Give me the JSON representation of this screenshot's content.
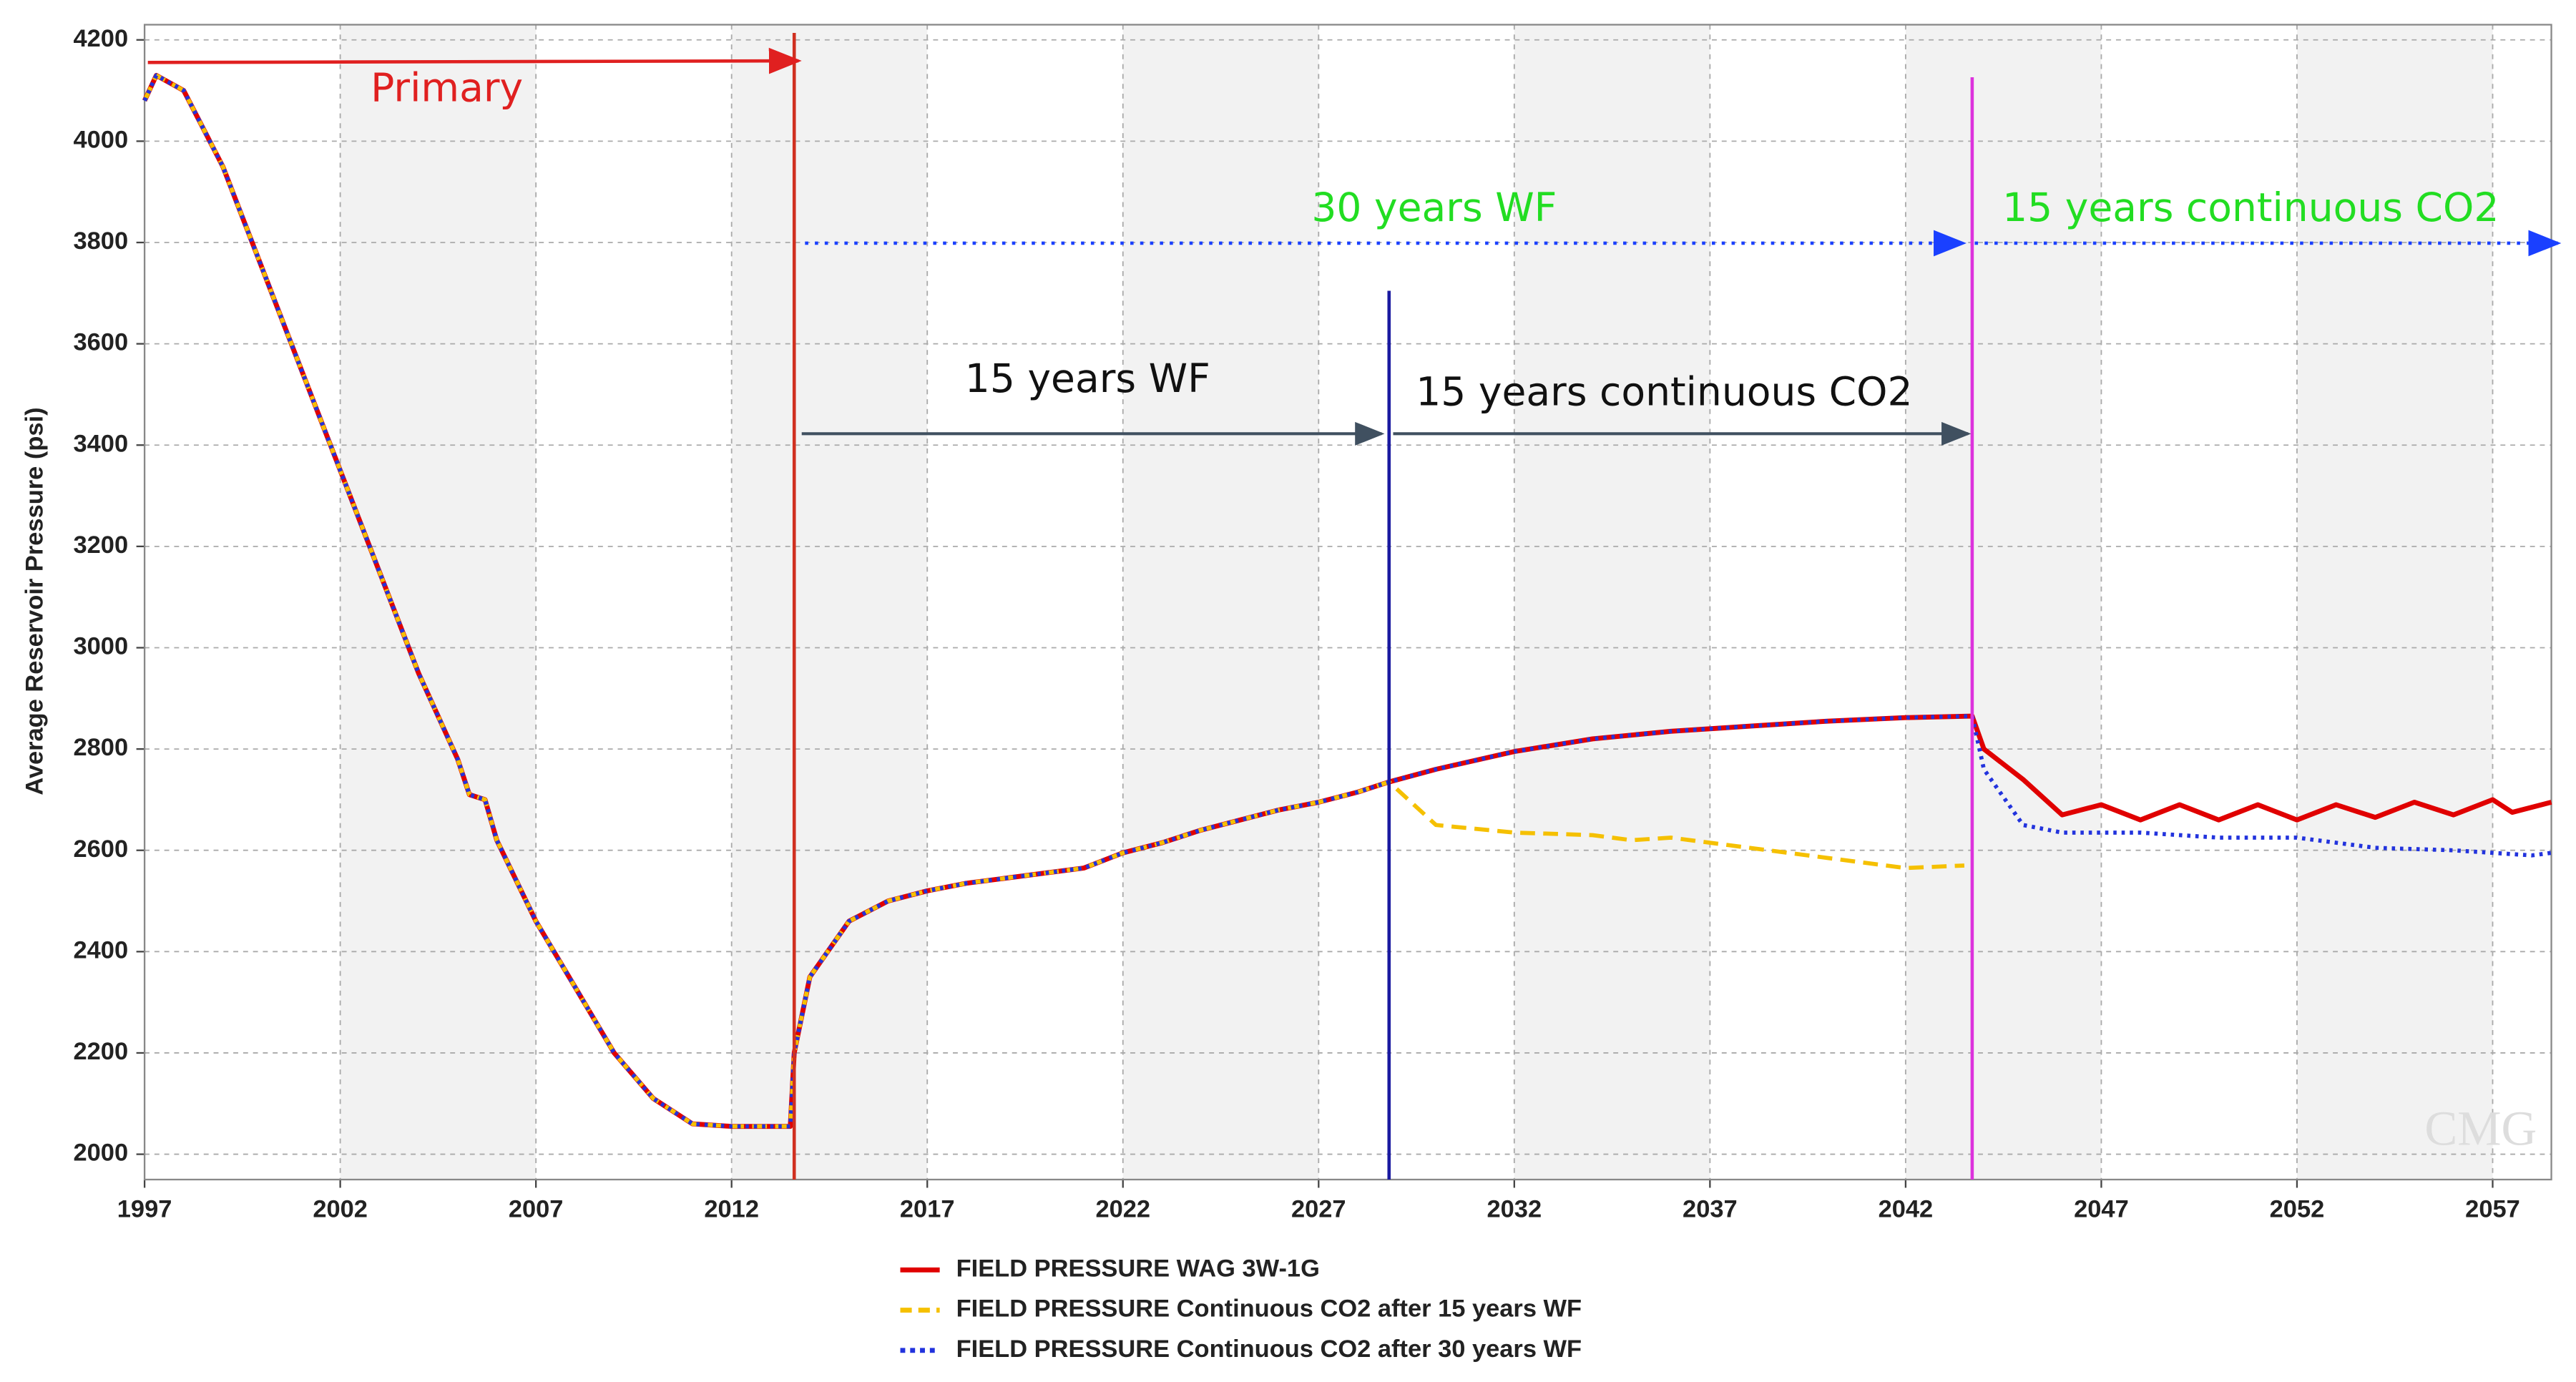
{
  "chart_data": {
    "type": "line",
    "y_label": "Average Reservoir Pressure (psi)",
    "xlim": [
      1997,
      2058.5
    ],
    "ylim": [
      1950,
      4230
    ],
    "xticks": [
      1997,
      2002,
      2007,
      2012,
      2017,
      2022,
      2027,
      2032,
      2037,
      2042,
      2047,
      2052,
      2057
    ],
    "yticks": [
      2000,
      2200,
      2400,
      2600,
      2800,
      3000,
      3200,
      3400,
      3600,
      3800,
      4000,
      4200
    ],
    "grid": true,
    "series": [
      {
        "name": "FIELD PRESSURE WAG 3W-1G",
        "color": "#e00000",
        "style": "solid",
        "x": [
          1997,
          1997.3,
          1998,
          1999,
          2000,
          2001,
          2002,
          2003,
          2004,
          2005,
          2005.3,
          2005.7,
          2006,
          2007,
          2008,
          2009,
          2010,
          2011,
          2012,
          2013,
          2013.5,
          2013.6,
          2014,
          2015,
          2016,
          2017,
          2018,
          2019,
          2020,
          2021,
          2022,
          2023,
          2024,
          2025,
          2026,
          2027,
          2028,
          2028.8,
          2030,
          2032,
          2034,
          2036,
          2038,
          2040,
          2042,
          2043.7,
          2044,
          2045,
          2046,
          2047,
          2048,
          2049,
          2050,
          2051,
          2052,
          2053,
          2054,
          2055,
          2056,
          2057,
          2057.5,
          2058.5
        ],
        "values": [
          4080,
          4130,
          4100,
          3950,
          3750,
          3550,
          3350,
          3150,
          2950,
          2780,
          2710,
          2700,
          2620,
          2460,
          2330,
          2200,
          2110,
          2060,
          2055,
          2055,
          2055,
          2200,
          2350,
          2460,
          2500,
          2520,
          2535,
          2545,
          2555,
          2565,
          2595,
          2615,
          2640,
          2660,
          2680,
          2695,
          2715,
          2735,
          2760,
          2795,
          2820,
          2835,
          2845,
          2855,
          2862,
          2865,
          2800,
          2740,
          2670,
          2690,
          2660,
          2690,
          2660,
          2690,
          2660,
          2690,
          2665,
          2695,
          2670,
          2700,
          2675,
          2695
        ]
      },
      {
        "name": "FIELD PRESSURE Continuous CO2 after 15 years WF",
        "color": "#f5c000",
        "style": "dashed",
        "x": [
          1997,
          1997.3,
          1998,
          1999,
          2000,
          2001,
          2002,
          2003,
          2004,
          2005,
          2005.3,
          2005.7,
          2006,
          2007,
          2008,
          2009,
          2010,
          2011,
          2012,
          2013,
          2013.5,
          2013.6,
          2014,
          2015,
          2016,
          2017,
          2018,
          2019,
          2020,
          2021,
          2022,
          2023,
          2024,
          2025,
          2026,
          2027,
          2028,
          2028.8,
          2030,
          2032,
          2034,
          2035,
          2036,
          2038,
          2040,
          2042,
          2043.5
        ],
        "values": [
          4080,
          4130,
          4100,
          3950,
          3750,
          3550,
          3350,
          3150,
          2950,
          2780,
          2710,
          2700,
          2620,
          2460,
          2330,
          2200,
          2110,
          2060,
          2055,
          2055,
          2055,
          2200,
          2350,
          2460,
          2500,
          2520,
          2535,
          2545,
          2555,
          2565,
          2595,
          2615,
          2640,
          2660,
          2680,
          2695,
          2715,
          2735,
          2650,
          2635,
          2630,
          2620,
          2625,
          2605,
          2585,
          2565,
          2570
        ]
      },
      {
        "name": "FIELD PRESSURE Continuous CO2 after 30 years WF",
        "color": "#2233dd",
        "style": "dotted",
        "x": [
          1997,
          1997.3,
          1998,
          1999,
          2000,
          2001,
          2002,
          2003,
          2004,
          2005,
          2005.3,
          2005.7,
          2006,
          2007,
          2008,
          2009,
          2010,
          2011,
          2012,
          2013,
          2013.5,
          2013.6,
          2014,
          2015,
          2016,
          2017,
          2018,
          2019,
          2020,
          2021,
          2022,
          2023,
          2024,
          2025,
          2026,
          2027,
          2028,
          2028.8,
          2030,
          2032,
          2034,
          2036,
          2038,
          2040,
          2042,
          2043.7,
          2044,
          2045,
          2046,
          2048,
          2050,
          2052,
          2054,
          2056,
          2058,
          2058.5
        ],
        "values": [
          4080,
          4130,
          4100,
          3950,
          3750,
          3550,
          3350,
          3150,
          2950,
          2780,
          2710,
          2700,
          2620,
          2460,
          2330,
          2200,
          2110,
          2060,
          2055,
          2055,
          2055,
          2200,
          2350,
          2460,
          2500,
          2520,
          2535,
          2545,
          2555,
          2565,
          2595,
          2615,
          2640,
          2660,
          2680,
          2695,
          2715,
          2735,
          2760,
          2795,
          2820,
          2835,
          2845,
          2855,
          2862,
          2865,
          2760,
          2650,
          2635,
          2635,
          2625,
          2625,
          2605,
          2600,
          2590,
          2595
        ]
      }
    ],
    "phase_lines": [
      {
        "x": 2013.6,
        "color": "#d03020"
      },
      {
        "x": 2028.8,
        "color": "#1a1aa0"
      },
      {
        "x": 2043.7,
        "color": "#dd33dd"
      }
    ],
    "annotations": [
      {
        "text": "Primary",
        "color": "#e02020"
      },
      {
        "text": "30 years WF",
        "color": "#22dd22"
      },
      {
        "text": "15 years continuous CO2",
        "color": "#22dd22"
      },
      {
        "text": "15 years WF",
        "color": "#111111"
      },
      {
        "text": "15 years continuous CO2",
        "color": "#111111"
      }
    ],
    "watermark": "CMG"
  }
}
